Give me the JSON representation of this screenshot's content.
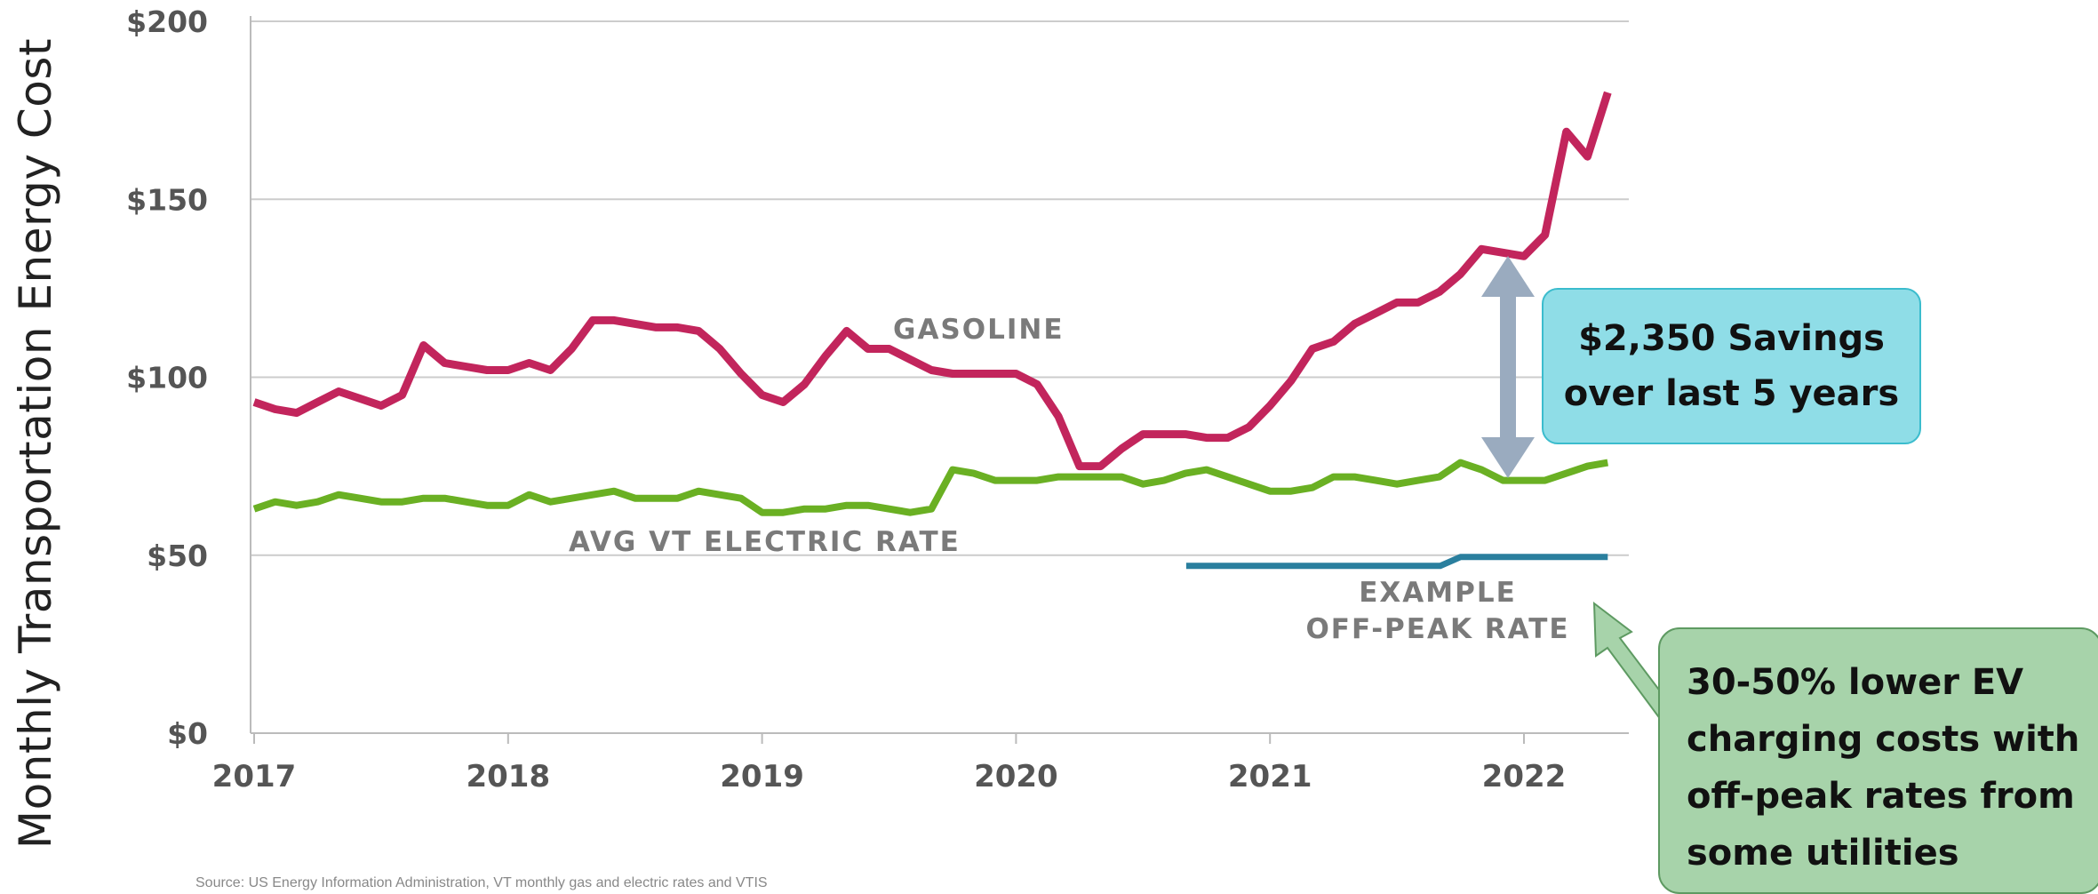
{
  "chart_data": {
    "type": "line",
    "title": "",
    "xlabel": "",
    "ylabel": "Monthly Transportation Energy Cost",
    "xlim": [
      2017.0,
      2022.42
    ],
    "ylim": [
      0,
      200
    ],
    "y_ticks": [
      "$0",
      "$50",
      "$100",
      "$150",
      "$200"
    ],
    "y_tick_values": [
      0,
      50,
      100,
      150,
      200
    ],
    "x_ticks": [
      "2017",
      "2018",
      "2019",
      "2020",
      "2021",
      "2022"
    ],
    "x_tick_values": [
      2017,
      2018,
      2019,
      2020,
      2021,
      2022
    ],
    "grid": "horizontal",
    "series": [
      {
        "name": "GASOLINE",
        "color": "#c2255c",
        "x": [
          2017.0,
          2017.083,
          2017.167,
          2017.25,
          2017.333,
          2017.417,
          2017.5,
          2017.583,
          2017.667,
          2017.75,
          2017.833,
          2017.917,
          2018.0,
          2018.083,
          2018.167,
          2018.25,
          2018.333,
          2018.417,
          2018.5,
          2018.583,
          2018.667,
          2018.75,
          2018.833,
          2018.917,
          2019.0,
          2019.083,
          2019.167,
          2019.25,
          2019.333,
          2019.417,
          2019.5,
          2019.583,
          2019.667,
          2019.75,
          2019.833,
          2019.917,
          2020.0,
          2020.083,
          2020.167,
          2020.25,
          2020.333,
          2020.417,
          2020.5,
          2020.583,
          2020.667,
          2020.75,
          2020.833,
          2020.917,
          2021.0,
          2021.083,
          2021.167,
          2021.25,
          2021.333,
          2021.417,
          2021.5,
          2021.583,
          2021.667,
          2021.75,
          2021.833,
          2021.917,
          2022.0,
          2022.083,
          2022.167,
          2022.25,
          2022.33
        ],
        "values": [
          93,
          91,
          90,
          93,
          96,
          94,
          92,
          95,
          109,
          104,
          103,
          102,
          102,
          104,
          102,
          108,
          116,
          116,
          115,
          114,
          114,
          113,
          108,
          101,
          95,
          93,
          98,
          106,
          113,
          108,
          108,
          105,
          102,
          101,
          101,
          101,
          101,
          98,
          89,
          75,
          75,
          80,
          84,
          84,
          84,
          83,
          83,
          86,
          92,
          99,
          108,
          110,
          115,
          118,
          121,
          121,
          124,
          129,
          136,
          135,
          134,
          140,
          169,
          162,
          180
        ]
      },
      {
        "name": "AVG VT ELECTRIC RATE",
        "color": "#6ab023",
        "x": [
          2017.0,
          2017.083,
          2017.167,
          2017.25,
          2017.333,
          2017.417,
          2017.5,
          2017.583,
          2017.667,
          2017.75,
          2017.833,
          2017.917,
          2018.0,
          2018.083,
          2018.167,
          2018.25,
          2018.333,
          2018.417,
          2018.5,
          2018.583,
          2018.667,
          2018.75,
          2018.833,
          2018.917,
          2019.0,
          2019.083,
          2019.167,
          2019.25,
          2019.333,
          2019.417,
          2019.5,
          2019.583,
          2019.667,
          2019.75,
          2019.833,
          2019.917,
          2020.0,
          2020.083,
          2020.167,
          2020.25,
          2020.333,
          2020.417,
          2020.5,
          2020.583,
          2020.667,
          2020.75,
          2020.833,
          2020.917,
          2021.0,
          2021.083,
          2021.167,
          2021.25,
          2021.333,
          2021.417,
          2021.5,
          2021.583,
          2021.667,
          2021.75,
          2021.833,
          2021.917,
          2022.0,
          2022.083,
          2022.167,
          2022.25,
          2022.33
        ],
        "values": [
          63,
          65,
          64,
          65,
          67,
          66,
          65,
          65,
          66,
          66,
          65,
          64,
          64,
          67,
          65,
          66,
          67,
          68,
          66,
          66,
          66,
          68,
          67,
          66,
          62,
          62,
          63,
          63,
          64,
          64,
          63,
          62,
          63,
          74,
          73,
          71,
          71,
          71,
          72,
          72,
          72,
          72,
          70,
          71,
          73,
          74,
          72,
          70,
          68,
          68,
          69,
          72,
          72,
          71,
          70,
          71,
          72,
          76,
          74,
          71,
          71,
          71,
          73,
          75,
          76
        ]
      },
      {
        "name": "EXAMPLE OFF-PEAK RATE",
        "color": "#2a7f9e",
        "x": [
          2020.67,
          2021.67,
          2021.75,
          2022.33
        ],
        "values": [
          47,
          47,
          49.5,
          49.5
        ]
      }
    ],
    "annotations": {
      "gasoline_label": "GASOLINE",
      "electric_label": "AVG VT ELECTRIC RATE",
      "offpeak_label_line1": "EXAMPLE",
      "offpeak_label_line2": "OFF-PEAK RATE"
    },
    "callouts": {
      "savings": [
        "$2,350 Savings",
        "over last 5 years"
      ],
      "offpeak": [
        "30-50% lower EV",
        "charging costs with",
        "off-peak rates from",
        "some utilities"
      ]
    },
    "colors": {
      "grid": "#cccccc",
      "axis": "#bbbbbb",
      "tick_text": "#555555",
      "series_label": "#7a7a7a",
      "arrow": "#9aabbf",
      "callout_blue_fill": "#8fdde7",
      "callout_green_fill": "#a7d3aa",
      "green_arrow": "#a7d3aa"
    }
  },
  "source_note": "Source: US Energy Information Administration, VT monthly gas and electric rates and VTIS"
}
